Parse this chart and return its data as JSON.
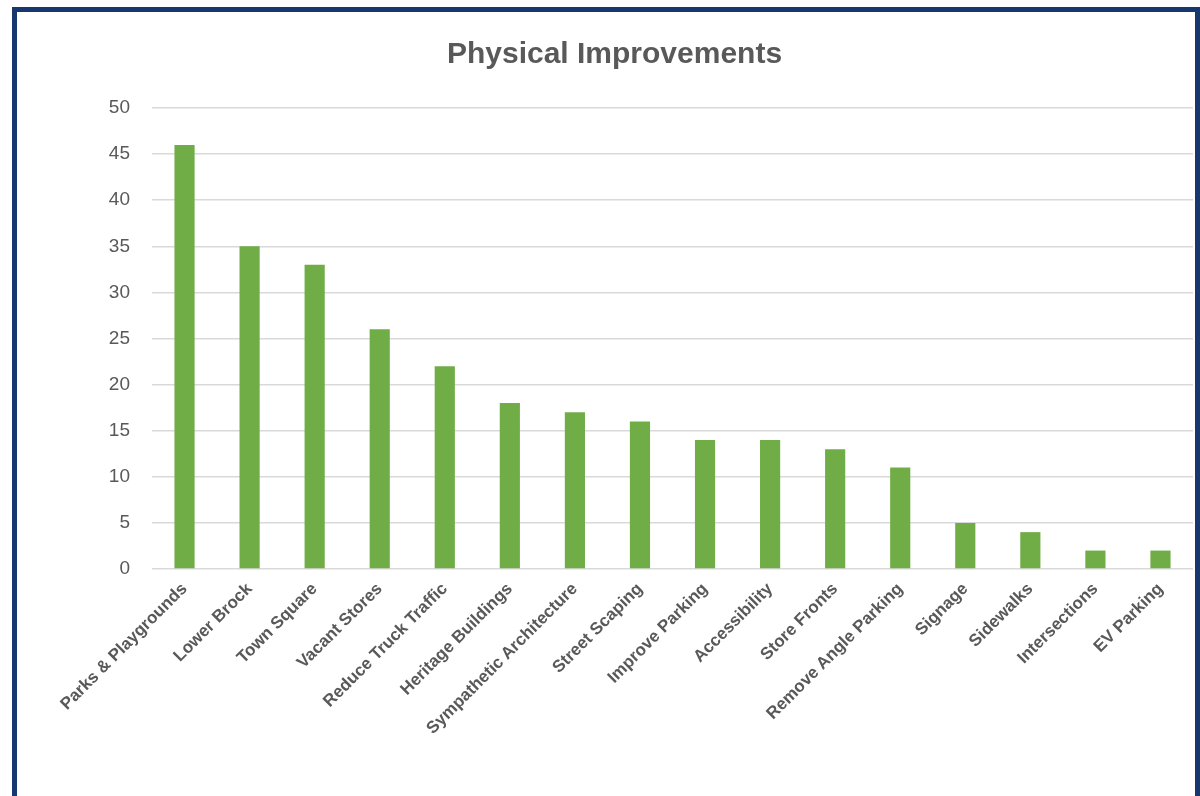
{
  "chart_data": {
    "type": "bar",
    "title": "Physical Improvements",
    "categories": [
      "Parks & Playgrounds",
      "Lower Brock",
      "Town Square",
      "Vacant Stores",
      "Reduce Truck Traffic",
      "Heritage Buildings",
      "Sympathetic Architecture",
      "Street Scaping",
      "Improve Parking",
      "Accessibility",
      "Store Fronts",
      "Remove Angle Parking",
      "Signage",
      "Sidewalks",
      "Intersections",
      "EV Parking"
    ],
    "values": [
      46,
      35,
      33,
      26,
      22,
      18,
      17,
      16,
      14,
      14,
      13,
      11,
      5,
      4,
      2,
      2
    ],
    "color": "#70ad47",
    "ylim": [
      0,
      50
    ],
    "yticks": [
      0,
      5,
      10,
      15,
      20,
      25,
      30,
      35,
      40,
      45,
      50
    ],
    "grid": "y"
  }
}
